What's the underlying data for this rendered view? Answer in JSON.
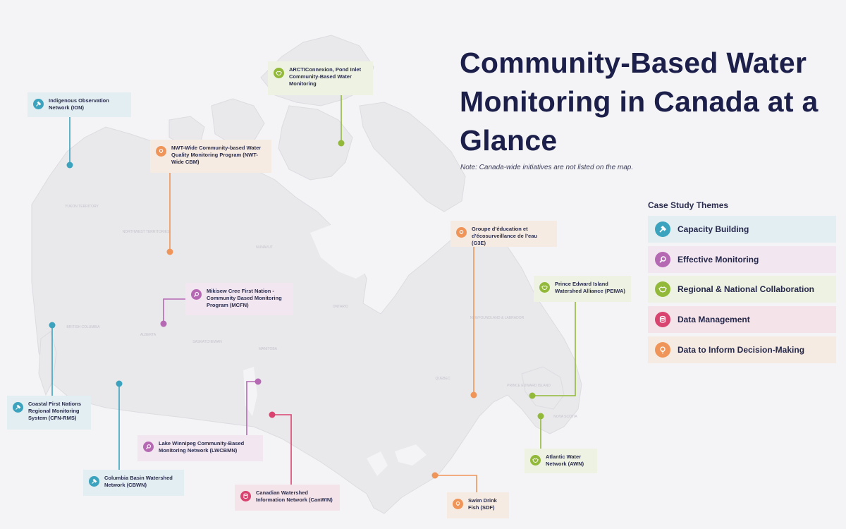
{
  "title": "Community-Based Water Monitoring in Canada at a Glance",
  "note": "Note: Canada-wide initiatives are not listed on the map.",
  "legend": {
    "heading": "Case Study Themes",
    "items": [
      {
        "label": "Capacity Building",
        "icon": "hammer-icon"
      },
      {
        "label": "Effective Monitoring",
        "icon": "magnifier-icon"
      },
      {
        "label": "Regional & National Collaboration",
        "icon": "handshake-icon"
      },
      {
        "label": "Data Management",
        "icon": "database-icon"
      },
      {
        "label": "Data to Inform Decision-Making",
        "icon": "lightbulb-icon"
      }
    ]
  },
  "colors": {
    "capacity": "#3ba3bd",
    "monitoring": "#b569b3",
    "collaboration": "#93b93a",
    "data": "#d9436f",
    "decision": "#f0955a"
  },
  "regions": [
    "YUKON TERRITORY",
    "NORTHWEST TERRITORIES",
    "NUNAVUT",
    "BRITISH COLUMBIA",
    "ALBERTA",
    "SASKATCHEWAN",
    "MANITOBA",
    "ONTARIO",
    "QUEBEC",
    "NEWFOUNDLAND & LABRADOR",
    "PRINCE EDWARD ISLAND",
    "NOVA SCOTIA"
  ],
  "programs": [
    {
      "label": "Indigenous Observation Network (ION)",
      "theme": "capacity"
    },
    {
      "label": "ARCTIConnexion, Pond Inlet Community-Based Water Monitoring",
      "theme": "collaboration"
    },
    {
      "label": "NWT-Wide Community-based Water Quality Monitoring Program (NWT-Wide CBM)",
      "theme": "decision"
    },
    {
      "label": "Mikisew Cree First Nation - Community Based Monitoring Program (MCFN)",
      "theme": "monitoring"
    },
    {
      "label": "Groupe d’éducation et d’écosurveillance de l’eau (G3E)",
      "theme": "decision"
    },
    {
      "label": "Prince Edward Island Watershed Alliance (PEIWA)",
      "theme": "collaboration"
    },
    {
      "label": "Coastal First Nations Regional Monitoring System (CFN-RMS)",
      "theme": "capacity"
    },
    {
      "label": "Lake Winnipeg Community-Based Monitoring Network (LWCBMN)",
      "theme": "monitoring"
    },
    {
      "label": "Columbia Basin Watershed Network (CBWN)",
      "theme": "capacity"
    },
    {
      "label": "Canadian Watershed Information Network (CanWIN)",
      "theme": "data"
    },
    {
      "label": "Swim Drink Fish (SDF)",
      "theme": "decision"
    },
    {
      "label": "Atlantic Water Network (AWN)",
      "theme": "collaboration"
    }
  ]
}
